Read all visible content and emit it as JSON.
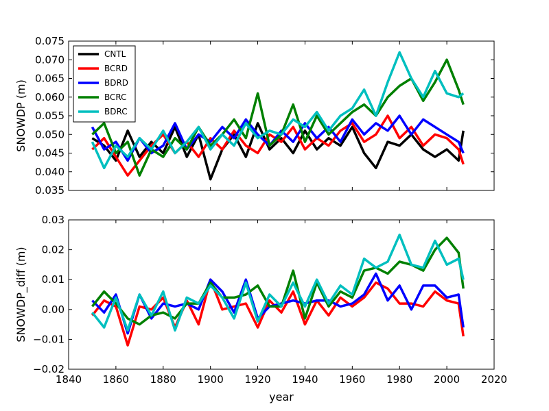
{
  "chart_data": [
    {
      "type": "line",
      "ylabel": "SNOWDP (m)",
      "xlabel": "",
      "xlim": [
        1840,
        2020
      ],
      "ylim": [
        0.035,
        0.075
      ],
      "yticks": [
        "0.035",
        "0.040",
        "0.045",
        "0.050",
        "0.055",
        "0.060",
        "0.065",
        "0.070",
        "0.075"
      ],
      "show_xtick_labels": false,
      "legend": {
        "position": "top-left",
        "entries": [
          "CNTL",
          "BCRD",
          "BDRD",
          "BCRC",
          "BDRC"
        ]
      },
      "series": [
        {
          "name": "CNTL",
          "color": "#000000",
          "x": [
            1850,
            1855,
            1860,
            1865,
            1870,
            1875,
            1880,
            1885,
            1890,
            1895,
            1900,
            1905,
            1910,
            1915,
            1920,
            1925,
            1930,
            1935,
            1940,
            1945,
            1950,
            1955,
            1960,
            1965,
            1970,
            1975,
            1980,
            1985,
            1990,
            1995,
            2000,
            2005,
            2007
          ],
          "values": [
            0.049,
            0.047,
            0.043,
            0.051,
            0.044,
            0.048,
            0.045,
            0.052,
            0.044,
            0.05,
            0.038,
            0.046,
            0.05,
            0.044,
            0.053,
            0.046,
            0.049,
            0.045,
            0.051,
            0.046,
            0.049,
            0.047,
            0.052,
            0.045,
            0.041,
            0.048,
            0.047,
            0.05,
            0.046,
            0.044,
            0.046,
            0.043,
            0.051
          ]
        },
        {
          "name": "BCRD",
          "color": "#ff0000",
          "x": [
            1850,
            1855,
            1860,
            1865,
            1870,
            1875,
            1880,
            1885,
            1890,
            1895,
            1900,
            1905,
            1910,
            1915,
            1920,
            1925,
            1930,
            1935,
            1940,
            1945,
            1950,
            1955,
            1960,
            1965,
            1970,
            1975,
            1980,
            1985,
            1990,
            1995,
            2000,
            2005,
            2007
          ],
          "values": [
            0.046,
            0.049,
            0.044,
            0.039,
            0.043,
            0.047,
            0.05,
            0.045,
            0.048,
            0.044,
            0.049,
            0.046,
            0.051,
            0.047,
            0.045,
            0.05,
            0.048,
            0.052,
            0.046,
            0.049,
            0.047,
            0.051,
            0.053,
            0.048,
            0.05,
            0.055,
            0.049,
            0.052,
            0.047,
            0.05,
            0.049,
            0.046,
            0.042
          ]
        },
        {
          "name": "BDRD",
          "color": "#0000ff",
          "x": [
            1850,
            1855,
            1860,
            1865,
            1870,
            1875,
            1880,
            1885,
            1890,
            1895,
            1900,
            1905,
            1910,
            1915,
            1920,
            1925,
            1930,
            1935,
            1940,
            1945,
            1950,
            1955,
            1960,
            1965,
            1970,
            1975,
            1980,
            1985,
            1990,
            1995,
            2000,
            2005,
            2007
          ],
          "values": [
            0.052,
            0.046,
            0.048,
            0.043,
            0.049,
            0.045,
            0.047,
            0.053,
            0.046,
            0.05,
            0.048,
            0.052,
            0.049,
            0.054,
            0.05,
            0.047,
            0.051,
            0.048,
            0.053,
            0.049,
            0.052,
            0.048,
            0.054,
            0.05,
            0.053,
            0.051,
            0.055,
            0.05,
            0.054,
            0.052,
            0.05,
            0.048,
            0.045
          ]
        },
        {
          "name": "BCRC",
          "color": "#008000",
          "x": [
            1850,
            1855,
            1860,
            1865,
            1870,
            1875,
            1880,
            1885,
            1890,
            1895,
            1900,
            1905,
            1910,
            1915,
            1920,
            1925,
            1930,
            1935,
            1940,
            1945,
            1950,
            1955,
            1960,
            1965,
            1970,
            1975,
            1980,
            1985,
            1990,
            1995,
            2000,
            2005,
            2007
          ],
          "values": [
            0.05,
            0.053,
            0.045,
            0.048,
            0.039,
            0.046,
            0.044,
            0.049,
            0.046,
            0.052,
            0.047,
            0.05,
            0.054,
            0.049,
            0.061,
            0.047,
            0.05,
            0.058,
            0.048,
            0.055,
            0.05,
            0.053,
            0.056,
            0.058,
            0.055,
            0.06,
            0.063,
            0.065,
            0.059,
            0.064,
            0.07,
            0.062,
            0.058
          ]
        },
        {
          "name": "BDRC",
          "color": "#00bfbf",
          "x": [
            1850,
            1855,
            1860,
            1865,
            1870,
            1875,
            1880,
            1885,
            1890,
            1895,
            1900,
            1905,
            1910,
            1915,
            1920,
            1925,
            1930,
            1935,
            1940,
            1945,
            1950,
            1955,
            1960,
            1965,
            1970,
            1975,
            1980,
            1985,
            1990,
            1995,
            2000,
            2005,
            2007
          ],
          "values": [
            0.048,
            0.041,
            0.047,
            0.044,
            0.049,
            0.046,
            0.051,
            0.045,
            0.048,
            0.052,
            0.046,
            0.05,
            0.047,
            0.053,
            0.049,
            0.051,
            0.05,
            0.054,
            0.052,
            0.056,
            0.051,
            0.055,
            0.057,
            0.062,
            0.055,
            0.064,
            0.072,
            0.065,
            0.06,
            0.067,
            0.061,
            0.06,
            0.061
          ]
        }
      ]
    },
    {
      "type": "line",
      "ylabel": "SNOWDP_diff (m)",
      "xlabel": "year",
      "xlim": [
        1840,
        2020
      ],
      "ylim": [
        -0.02,
        0.03
      ],
      "xticks": [
        "1840",
        "1860",
        "1880",
        "1900",
        "1920",
        "1940",
        "1960",
        "1980",
        "2000",
        "2020"
      ],
      "yticks": [
        "−0.02",
        "−0.01",
        "0.00",
        "0.01",
        "0.02",
        "0.03"
      ],
      "show_xtick_labels": true,
      "series": [
        {
          "name": "BCRD",
          "color": "#ff0000",
          "x": [
            1850,
            1855,
            1860,
            1865,
            1870,
            1875,
            1880,
            1885,
            1890,
            1895,
            1900,
            1905,
            1910,
            1915,
            1920,
            1925,
            1930,
            1935,
            1940,
            1945,
            1950,
            1955,
            1960,
            1965,
            1970,
            1975,
            1980,
            1985,
            1990,
            1995,
            2000,
            2005,
            2007
          ],
          "values": [
            -0.002,
            0.003,
            0.001,
            -0.012,
            0.001,
            0.0,
            0.004,
            -0.006,
            0.003,
            -0.005,
            0.01,
            0.0,
            0.001,
            0.002,
            -0.006,
            0.003,
            -0.001,
            0.006,
            -0.005,
            0.003,
            -0.002,
            0.004,
            0.001,
            0.004,
            0.009,
            0.007,
            0.002,
            0.002,
            0.001,
            0.006,
            0.003,
            0.002,
            -0.009
          ]
        },
        {
          "name": "BDRD",
          "color": "#0000ff",
          "x": [
            1850,
            1855,
            1860,
            1865,
            1870,
            1875,
            1880,
            1885,
            1890,
            1895,
            1900,
            1905,
            1910,
            1915,
            1920,
            1925,
            1930,
            1935,
            1940,
            1945,
            1950,
            1955,
            1960,
            1965,
            1970,
            1975,
            1980,
            1985,
            1990,
            1995,
            2000,
            2005,
            2007
          ],
          "values": [
            0.003,
            -0.001,
            0.005,
            -0.008,
            0.005,
            -0.003,
            0.002,
            0.001,
            0.002,
            0.0,
            0.01,
            0.006,
            -0.001,
            0.01,
            -0.003,
            0.001,
            0.002,
            0.003,
            0.002,
            0.003,
            0.003,
            0.001,
            0.002,
            0.005,
            0.012,
            0.003,
            0.008,
            0.0,
            0.008,
            0.008,
            0.004,
            0.005,
            -0.006
          ]
        },
        {
          "name": "BCRC",
          "color": "#008000",
          "x": [
            1850,
            1855,
            1860,
            1865,
            1870,
            1875,
            1880,
            1885,
            1890,
            1895,
            1900,
            1905,
            1910,
            1915,
            1920,
            1925,
            1930,
            1935,
            1940,
            1945,
            1950,
            1955,
            1960,
            1965,
            1970,
            1975,
            1980,
            1985,
            1990,
            1995,
            2000,
            2005,
            2007
          ],
          "values": [
            0.001,
            0.006,
            0.002,
            -0.003,
            -0.005,
            -0.002,
            -0.001,
            -0.003,
            0.002,
            0.002,
            0.009,
            0.004,
            0.004,
            0.005,
            0.008,
            0.001,
            0.001,
            0.013,
            -0.003,
            0.009,
            0.001,
            0.006,
            0.004,
            0.013,
            0.014,
            0.012,
            0.016,
            0.015,
            0.013,
            0.02,
            0.024,
            0.019,
            0.007
          ]
        },
        {
          "name": "BDRC",
          "color": "#00bfbf",
          "x": [
            1850,
            1855,
            1860,
            1865,
            1870,
            1875,
            1880,
            1885,
            1890,
            1895,
            1900,
            1905,
            1910,
            1915,
            1920,
            1925,
            1930,
            1935,
            1940,
            1945,
            1950,
            1955,
            1960,
            1965,
            1970,
            1975,
            1980,
            1985,
            1990,
            1995,
            2000,
            2005,
            2007
          ],
          "values": [
            -0.001,
            -0.006,
            0.004,
            -0.007,
            0.005,
            -0.002,
            0.006,
            -0.007,
            0.004,
            0.002,
            0.008,
            0.004,
            -0.003,
            0.009,
            -0.004,
            0.005,
            0.001,
            0.009,
            0.001,
            0.01,
            0.002,
            0.008,
            0.005,
            0.017,
            0.014,
            0.016,
            0.025,
            0.015,
            0.014,
            0.023,
            0.015,
            0.017,
            0.01
          ]
        }
      ]
    }
  ]
}
